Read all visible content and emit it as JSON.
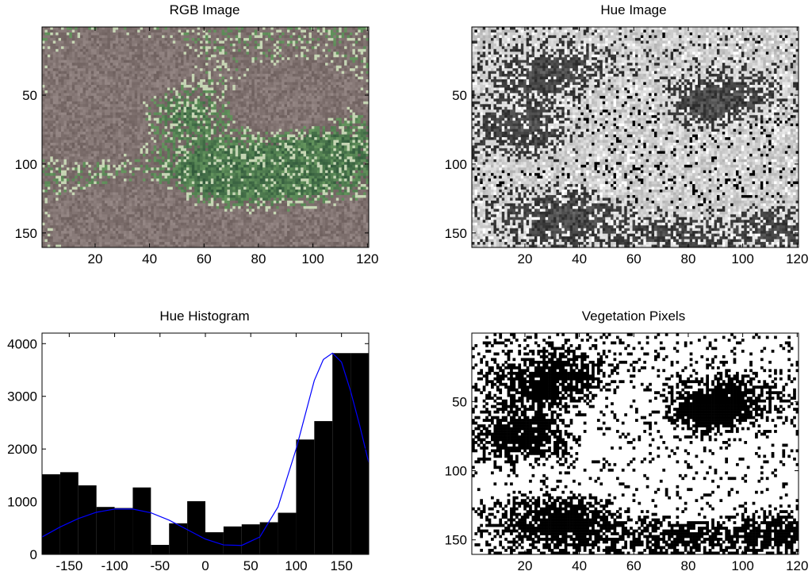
{
  "figure": {
    "panels": [
      {
        "title": "RGB Image",
        "xticks": [
          "20",
          "40",
          "60",
          "80",
          "100",
          "120"
        ],
        "yticks": [
          "50",
          "100",
          "150"
        ]
      },
      {
        "title": "Hue Image",
        "xticks": [
          "20",
          "40",
          "60",
          "80",
          "100",
          "120"
        ],
        "yticks": [
          "50",
          "100",
          "150"
        ]
      },
      {
        "title": "Hue Histogram"
      },
      {
        "title": "Vegetation Pixels",
        "xticks": [
          "20",
          "40",
          "60",
          "80",
          "100",
          "120"
        ],
        "yticks": [
          "50",
          "100",
          "150"
        ]
      }
    ]
  },
  "chart_data": [
    {
      "type": "image",
      "title": "RGB Image",
      "xlim": [
        0.5,
        120.5
      ],
      "ylim": [
        0.5,
        160.5
      ],
      "xticks": [
        20,
        40,
        60,
        80,
        100,
        120
      ],
      "yticks": [
        50,
        100,
        150
      ],
      "colors": {
        "soil": "#8a7a78",
        "vegetation": "#4f7a52",
        "highlight": "#b9c8bd"
      }
    },
    {
      "type": "image",
      "title": "Hue Image",
      "xlim": [
        0.5,
        120.5
      ],
      "ylim": [
        0.5,
        160.5
      ],
      "xticks": [
        20,
        40,
        60,
        80,
        100,
        120
      ],
      "yticks": [
        50,
        100,
        150
      ],
      "colormap": "gray"
    },
    {
      "type": "bar",
      "title": "Hue Histogram",
      "x": [
        -170,
        -150,
        -130,
        -110,
        -90,
        -70,
        -50,
        -30,
        -10,
        10,
        30,
        50,
        70,
        90,
        110,
        130,
        150,
        170
      ],
      "values": [
        1520,
        1560,
        1310,
        900,
        880,
        1270,
        180,
        590,
        1010,
        420,
        530,
        570,
        610,
        790,
        2180,
        2530,
        3820,
        3820
      ],
      "bar_width": 20,
      "bar_color": "#000000",
      "fit_line": {
        "color": "#0000ff",
        "x": [
          -180,
          -160,
          -140,
          -120,
          -100,
          -80,
          -60,
          -40,
          -20,
          0,
          20,
          40,
          60,
          80,
          100,
          120,
          130,
          140,
          150,
          160,
          170,
          180
        ],
        "y": [
          330,
          520,
          680,
          800,
          860,
          860,
          790,
          650,
          470,
          290,
          180,
          170,
          330,
          900,
          2000,
          3300,
          3700,
          3820,
          3650,
          3100,
          2450,
          1740
        ]
      },
      "xlim": [
        -180,
        180
      ],
      "ylim": [
        0,
        4200
      ],
      "xticks": [
        -150,
        -100,
        -50,
        0,
        50,
        100,
        150
      ],
      "yticks": [
        0,
        1000,
        2000,
        3000,
        4000
      ]
    },
    {
      "type": "image",
      "title": "Vegetation Pixels",
      "xlim": [
        0.5,
        120.5
      ],
      "ylim": [
        0.5,
        160.5
      ],
      "xticks": [
        20,
        40,
        60,
        80,
        100,
        120
      ],
      "yticks": [
        50,
        100,
        150
      ],
      "colormap": "binary"
    }
  ]
}
